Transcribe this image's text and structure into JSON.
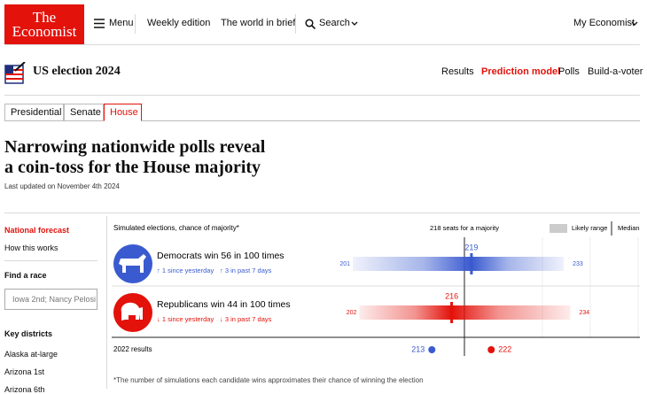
{
  "header": {
    "logo": [
      "The",
      "Economist"
    ],
    "nav": [
      "Menu",
      "Weekly edition",
      "The world in brief",
      "Search"
    ],
    "account": "My Economist"
  },
  "section": {
    "title": "US election 2024",
    "links": [
      "Results",
      "Prediction model",
      "Polls",
      "Build-a-voter"
    ],
    "active": 1
  },
  "tabs": {
    "items": [
      "Presidential",
      "Senate",
      "House"
    ],
    "active": 2
  },
  "article": {
    "headline": [
      "Narrowing nationwide polls reveal",
      "a coin-toss for the House majority"
    ],
    "updated": "Last updated on November 4th 2024"
  },
  "sidebar": {
    "national": "National forecast",
    "how": "How this works",
    "find": "Find a race",
    "placeholder": "Iowa 2nd; Nancy Pelosi",
    "key_title": "Key districts",
    "districts": [
      "Alaska at-large",
      "Arizona 1st",
      "Arizona 6th"
    ]
  },
  "forecast": {
    "title": "Simulated elections, chance of majority*",
    "majority_label": "218 seats for a majority",
    "legend": [
      "Likely range",
      "Median"
    ],
    "rows": [
      {
        "text": "Democrats win 56 in 100 times",
        "day": "↑ 1 since yesterday",
        "week": "↑ 3 in past 7 days",
        "low": 201,
        "median": 219,
        "high": 233,
        "color": "#3a5bd0"
      },
      {
        "text": "Republicans win 44 in 100 times",
        "day": "↓ 1 since yesterday",
        "week": "↓ 3 in past 7 days",
        "low": 202,
        "median": 216,
        "high": 234,
        "color": "#e3120b"
      }
    ],
    "results_label": "2022 results",
    "results": [
      213,
      222
    ],
    "footnote": "*The number of simulations each candidate wins approximates their chance of winning the election"
  }
}
